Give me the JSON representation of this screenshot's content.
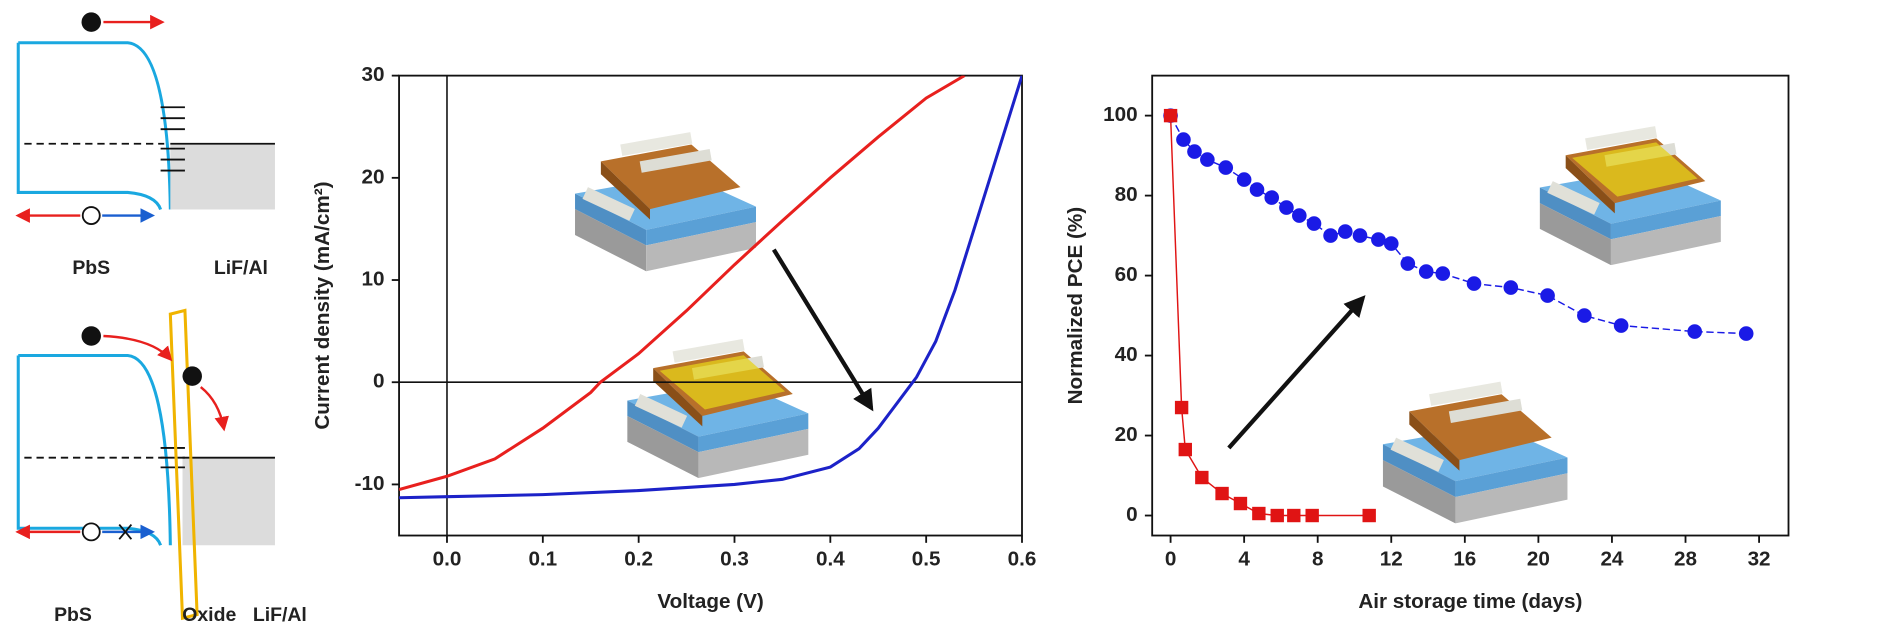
{
  "diagrams": [
    {
      "labels": [
        "PbS",
        "LiF/Al"
      ]
    },
    {
      "labels": [
        "PbS",
        "Oxide",
        "LiF/Al"
      ]
    }
  ],
  "chart_data": [
    {
      "type": "line",
      "xlabel": "Voltage (V)",
      "ylabel": "Current density (mA/cm²)",
      "xlim": [
        -0.05,
        0.6
      ],
      "ylim": [
        -15,
        30
      ],
      "xticks": [
        {
          "value": 0,
          "label": "0.0"
        },
        0.1,
        0.2,
        0.3,
        0.4,
        0.5,
        0.6
      ],
      "yticks": [
        -10,
        0,
        10,
        20,
        30
      ],
      "series": [
        {
          "color": "#e8201e",
          "x": [
            -0.05,
            0,
            0.05,
            0.1,
            0.15,
            0.16,
            0.2,
            0.25,
            0.3,
            0.35,
            0.4,
            0.45,
            0.5,
            0.54
          ],
          "values": [
            -10.5,
            -9.2,
            -7.5,
            -4.5,
            -1,
            0,
            2.8,
            7,
            11.5,
            15.8,
            20,
            24,
            27.8,
            30
          ]
        },
        {
          "color": "#1c22c8",
          "x": [
            -0.05,
            0,
            0.1,
            0.2,
            0.3,
            0.35,
            0.4,
            0.43,
            0.45,
            0.47,
            0.49,
            0.51,
            0.53,
            0.55,
            0.57,
            0.59,
            0.6
          ],
          "values": [
            -11.3,
            -11.2,
            -11,
            -10.6,
            -10,
            -9.5,
            -8.3,
            -6.5,
            -4.5,
            -2,
            0.5,
            4,
            9,
            15,
            21,
            27,
            30
          ]
        }
      ]
    },
    {
      "type": "line",
      "xlabel": "Air storage time (days)",
      "ylabel": "Normalized PCE (%)",
      "xlim": [
        -1,
        33.6
      ],
      "ylim": [
        -5,
        110
      ],
      "xticks": [
        0,
        4,
        8,
        12,
        16,
        20,
        24,
        28,
        32
      ],
      "yticks": [
        0,
        20,
        40,
        60,
        80,
        100
      ],
      "series": [
        {
          "color": "#1a1ae6",
          "marker": "circle",
          "x": [
            0,
            0.7,
            1.3,
            2,
            3,
            4,
            4.7,
            5.5,
            6.3,
            7,
            7.8,
            8.7,
            9.5,
            10.3,
            11.3,
            12,
            12.9,
            13.9,
            14.8,
            16.5,
            18.5,
            20.5,
            22.5,
            24.5,
            28.5,
            31.3
          ],
          "values": [
            100,
            94,
            91,
            89,
            87,
            84,
            81.5,
            79.5,
            77,
            75,
            73,
            70,
            71,
            70,
            69,
            68,
            63,
            61,
            60.5,
            58,
            57,
            55,
            50,
            47.5,
            46,
            45.5
          ]
        },
        {
          "color": "#e01414",
          "marker": "square",
          "x": [
            0,
            0.6,
            0.8,
            1.7,
            2.8,
            3.8,
            4.8,
            5.8,
            6.7,
            7.7,
            10.8
          ],
          "values": [
            100,
            27,
            16.5,
            9.5,
            5.5,
            3,
            0.5,
            0,
            0,
            0,
            0
          ]
        }
      ]
    }
  ]
}
